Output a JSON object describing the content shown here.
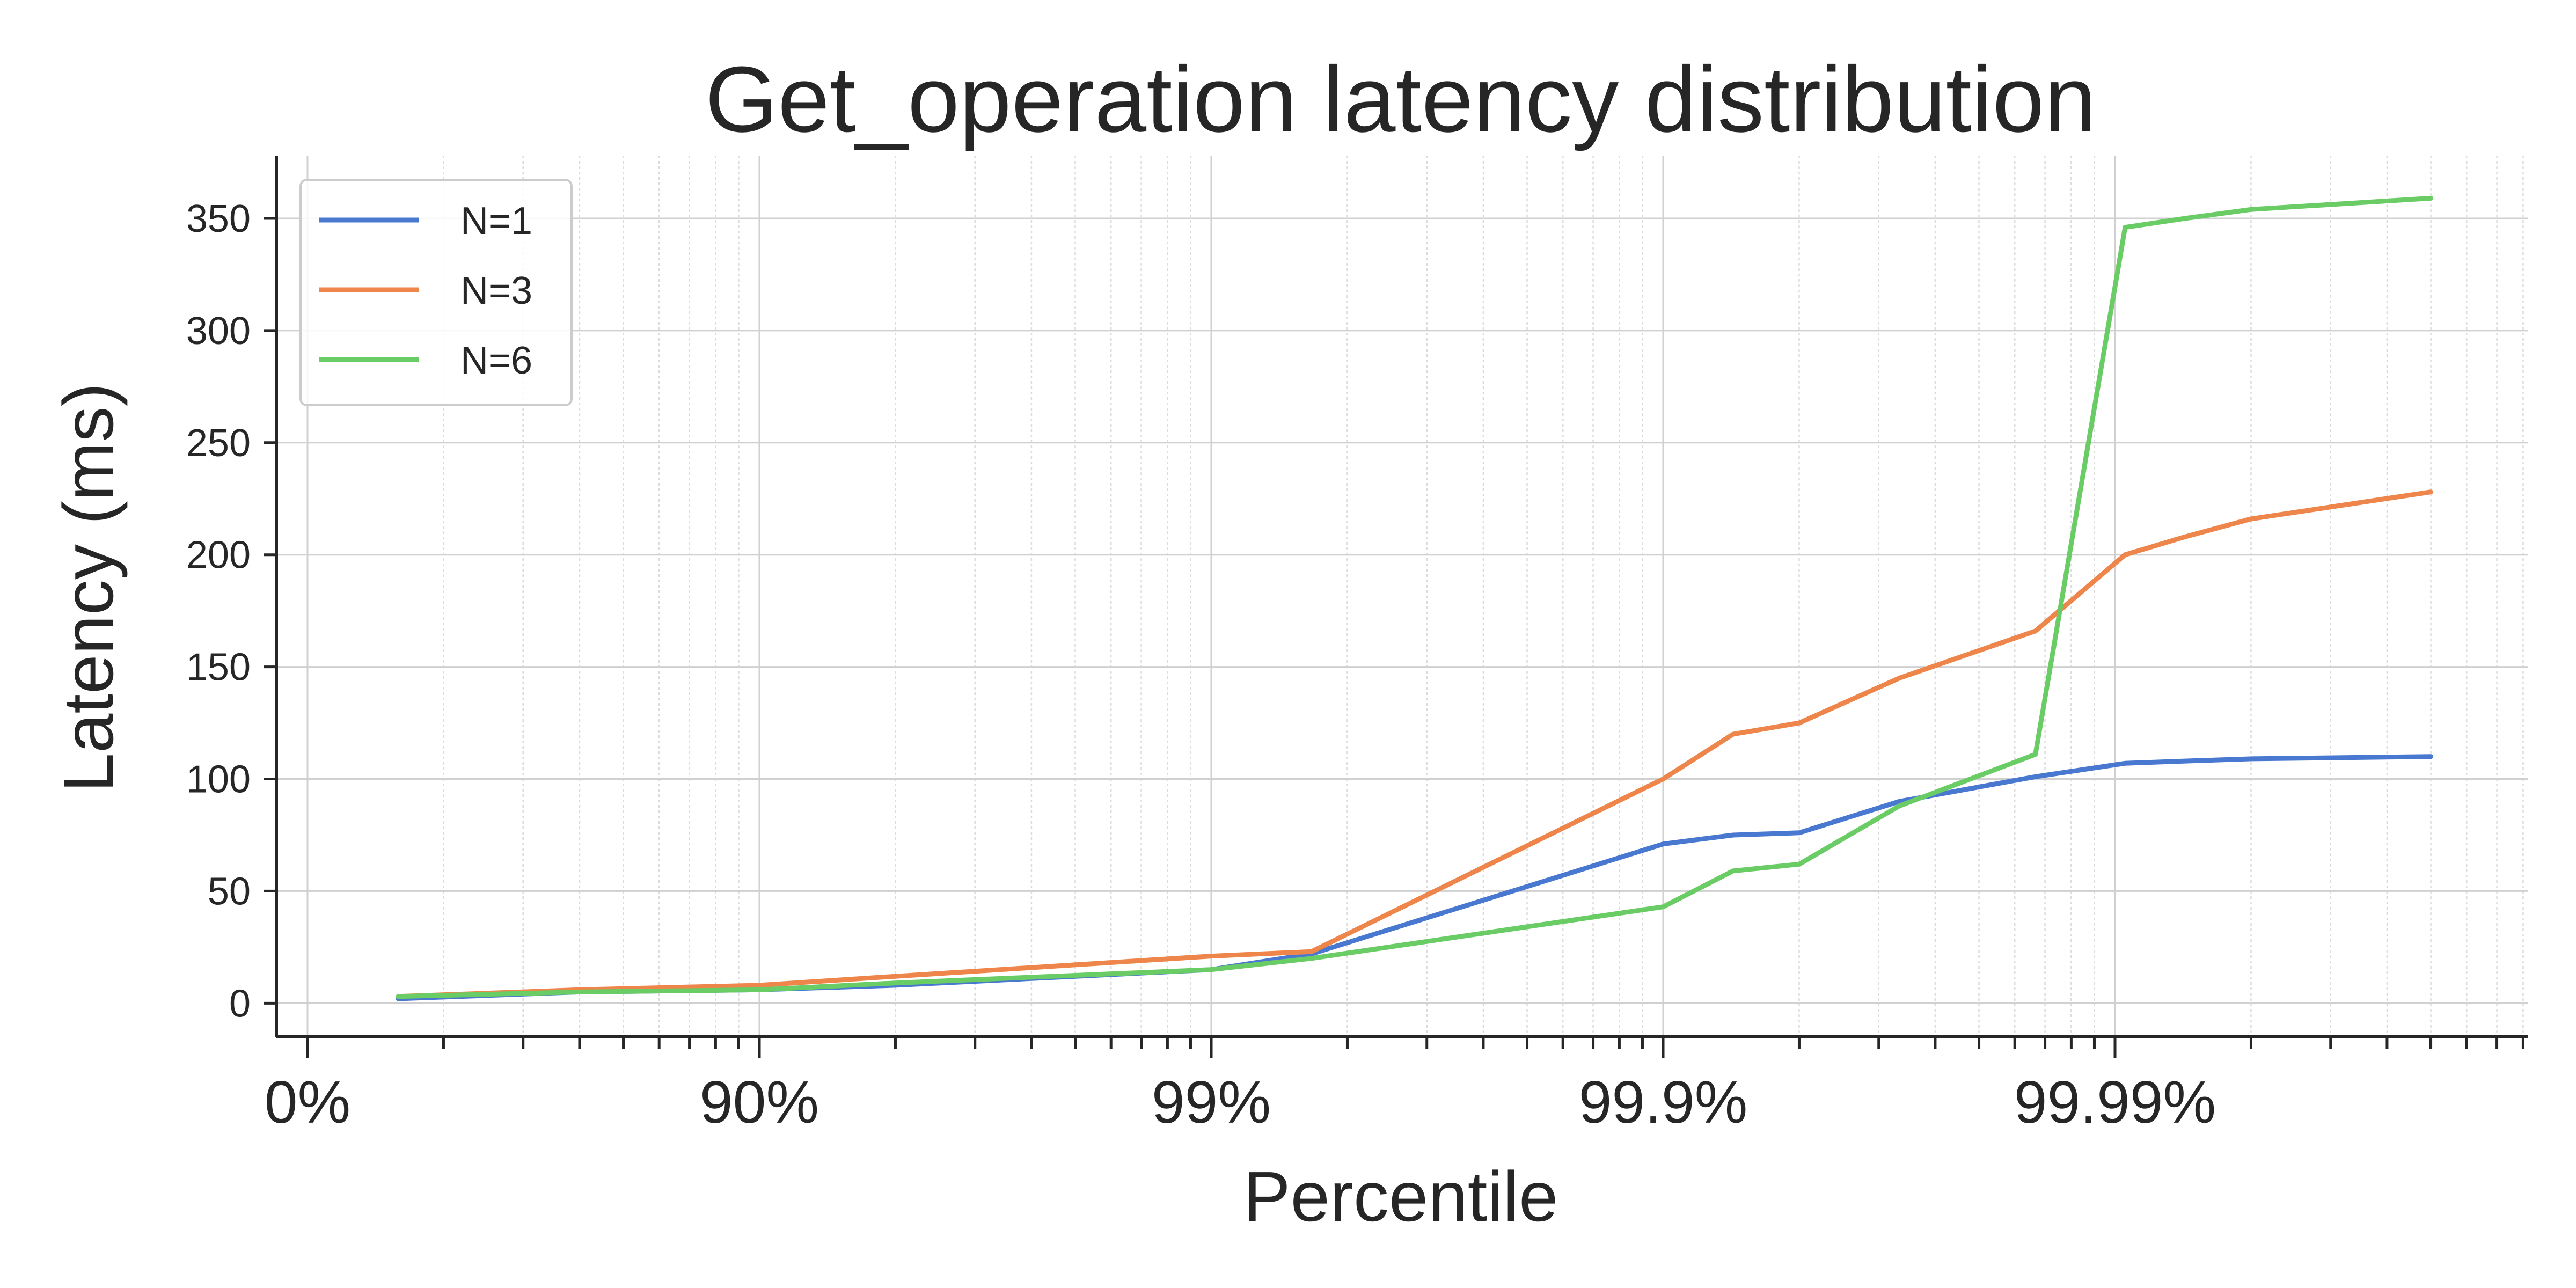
{
  "chart_data": {
    "type": "line",
    "title": "Get_operation latency distribution",
    "xlabel": "Percentile",
    "ylabel": "Latency (ms)",
    "x_scale": "log-percentile",
    "x_ticks": [
      {
        "label": "0%",
        "value": 0
      },
      {
        "label": "90%",
        "value": 90
      },
      {
        "label": "99%",
        "value": 99
      },
      {
        "label": "99.9%",
        "value": 99.9
      },
      {
        "label": "99.99%",
        "value": 99.99
      }
    ],
    "y_ticks": [
      0,
      50,
      100,
      150,
      200,
      250,
      300,
      350
    ],
    "ylim": [
      -15,
      378
    ],
    "grid": true,
    "legend_position": "top-left",
    "series": [
      {
        "name": "N=1",
        "color": "#4878d0",
        "points": [
          [
            37,
            2
          ],
          [
            75,
            5
          ],
          [
            90,
            6
          ],
          [
            95,
            8
          ],
          [
            99,
            15
          ],
          [
            99.4,
            22
          ],
          [
            99.9,
            71
          ],
          [
            99.93,
            75
          ],
          [
            99.95,
            76
          ],
          [
            99.97,
            90
          ],
          [
            99.985,
            101
          ],
          [
            99.9905,
            107
          ],
          [
            99.993,
            108
          ],
          [
            99.995,
            109
          ],
          [
            99.998,
            110
          ]
        ]
      },
      {
        "name": "N=3",
        "color": "#ee854a",
        "points": [
          [
            37,
            3
          ],
          [
            75,
            6
          ],
          [
            90,
            8
          ],
          [
            95,
            12
          ],
          [
            99,
            21
          ],
          [
            99.4,
            23
          ],
          [
            99.9,
            100
          ],
          [
            99.93,
            120
          ],
          [
            99.95,
            125
          ],
          [
            99.97,
            145
          ],
          [
            99.985,
            166
          ],
          [
            99.9905,
            200
          ],
          [
            99.993,
            208
          ],
          [
            99.995,
            216
          ],
          [
            99.998,
            228
          ]
        ]
      },
      {
        "name": "N=6",
        "color": "#6acc64",
        "points": [
          [
            37,
            3
          ],
          [
            75,
            5
          ],
          [
            90,
            6
          ],
          [
            95,
            9
          ],
          [
            99,
            15
          ],
          [
            99.4,
            20
          ],
          [
            99.9,
            43
          ],
          [
            99.93,
            59
          ],
          [
            99.95,
            62
          ],
          [
            99.97,
            88
          ],
          [
            99.985,
            111
          ],
          [
            99.9905,
            346
          ],
          [
            99.993,
            350
          ],
          [
            99.995,
            354
          ],
          [
            99.998,
            359
          ]
        ]
      }
    ]
  }
}
